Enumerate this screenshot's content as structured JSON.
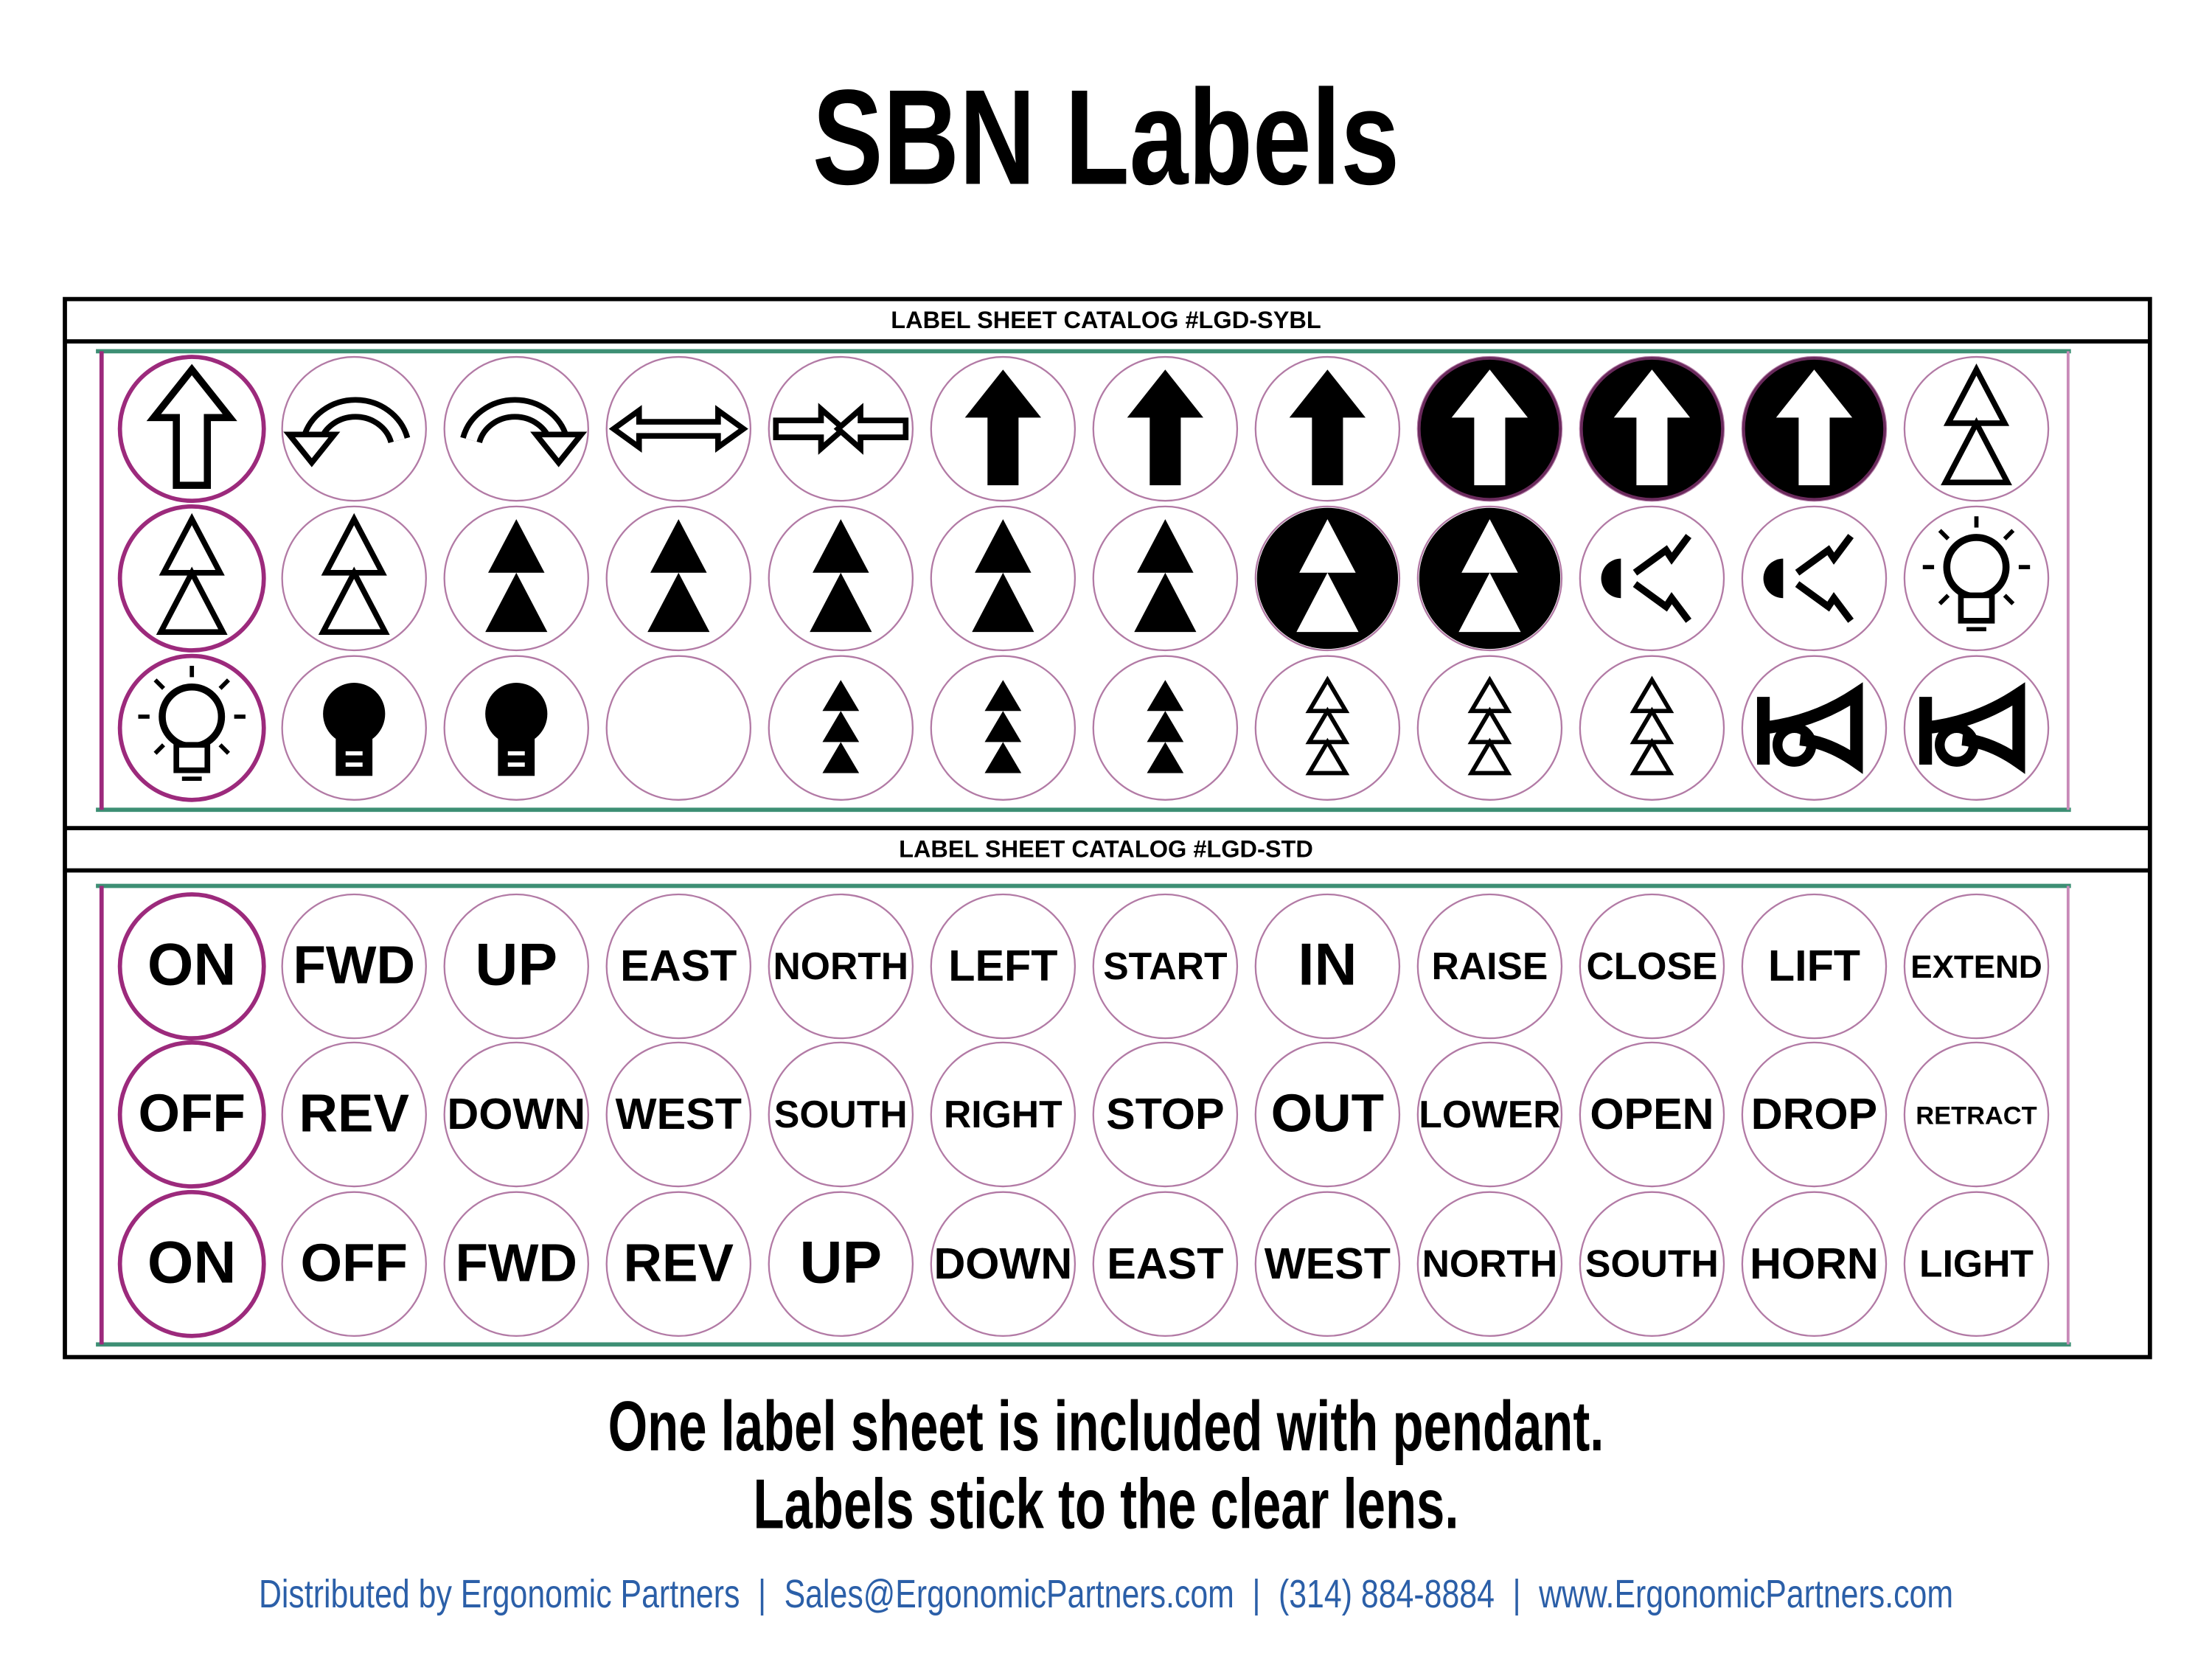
{
  "title": "SBN Labels",
  "catalogs": [
    {
      "heading": "LABEL SHEET CATALOG #LGD-SYBL"
    },
    {
      "heading": "LABEL SHEET CATALOG #LGD-STD",
      "rows": [
        [
          "ON",
          "FWD",
          "UP",
          "EAST",
          "NORTH",
          "LEFT",
          "START",
          "IN",
          "RAISE",
          "CLOSE",
          "LIFT",
          "EXTEND"
        ],
        [
          "OFF",
          "REV",
          "DOWN",
          "WEST",
          "SOUTH",
          "RIGHT",
          "STOP",
          "OUT",
          "LOWER",
          "OPEN",
          "DROP",
          "RETRACT"
        ],
        [
          "ON",
          "OFF",
          "FWD",
          "REV",
          "UP",
          "DOWN",
          "EAST",
          "WEST",
          "NORTH",
          "SOUTH",
          "HORN",
          "LIGHT"
        ]
      ]
    }
  ],
  "caption": [
    "One label sheet is included with pendant.",
    "Labels stick to the clear lens."
  ],
  "footer": {
    "items": [
      "Distributed by Ergonomic Partners",
      "Sales@ErgonomicPartners.com",
      "(314) 884-8884",
      "www.ErgonomicPartners.com"
    ],
    "separator": "|"
  }
}
